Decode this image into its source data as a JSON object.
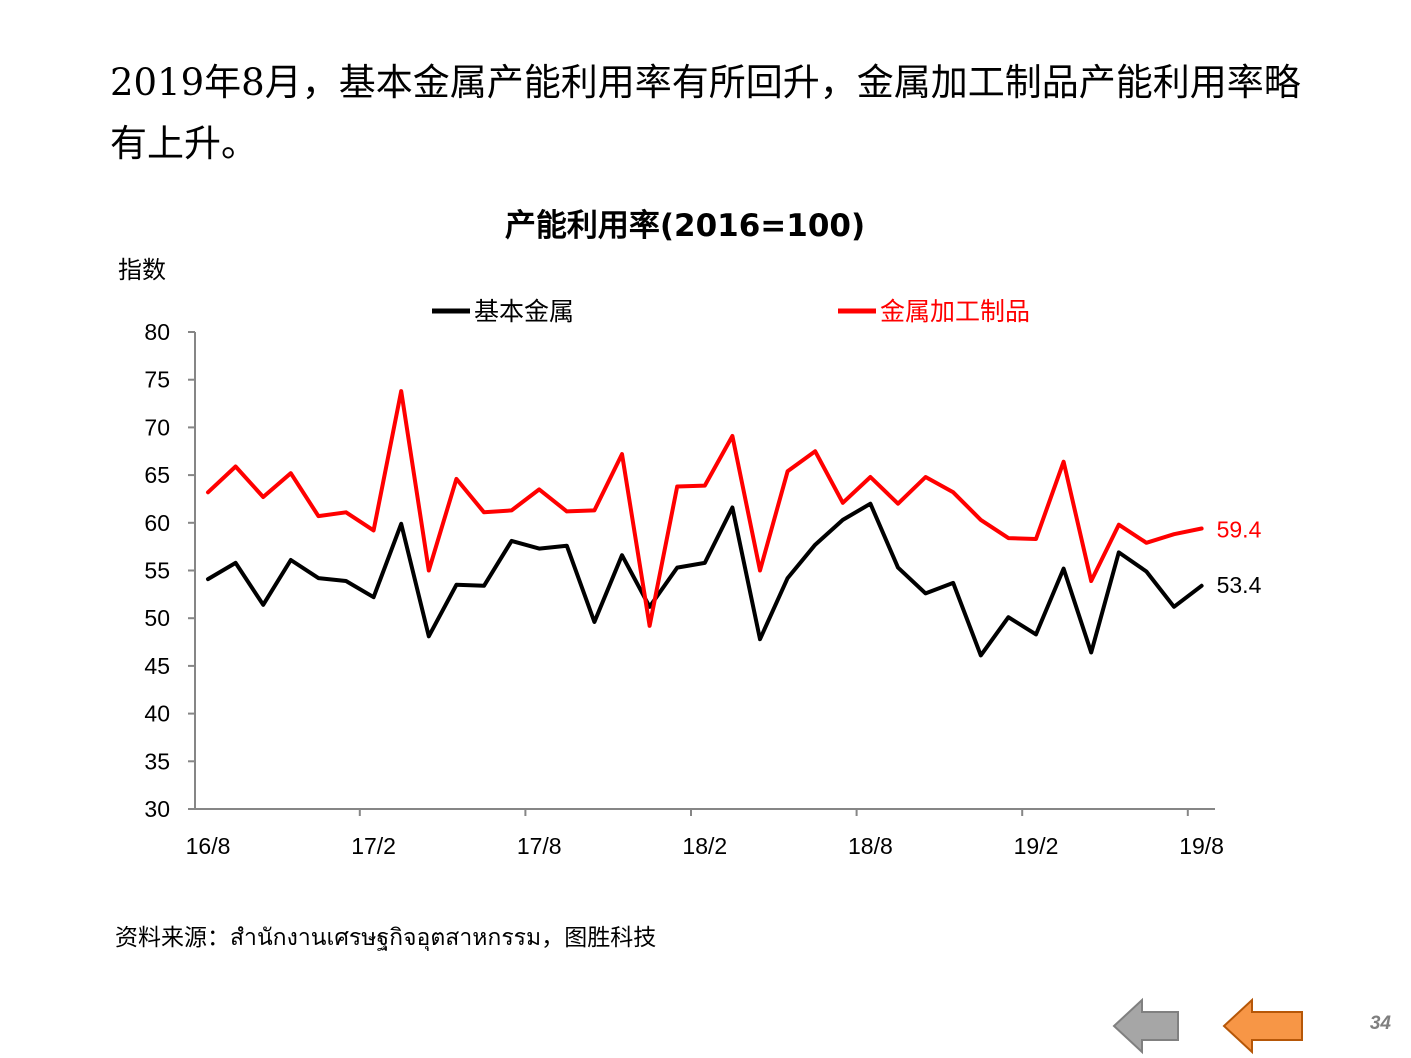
{
  "headline": "2019年8月，基本金属产能利用率有所回升，金属加工制品产能利用率略有上升。",
  "source": "资料来源：สำนักงานเศรษฐกิจอุตสาหกรรม，图胜科技",
  "page_number": "34",
  "nav": {
    "back_icon": "grey-left-arrow-icon",
    "prev_icon": "orange-left-arrow-icon"
  },
  "chart_data": {
    "type": "line",
    "title": "产能利用率(2016=100)",
    "ylabel": "指数",
    "ylim": [
      30,
      80
    ],
    "y_ticks": [
      "80",
      "75",
      "70",
      "65",
      "60",
      "55",
      "50",
      "45",
      "40",
      "35",
      "30"
    ],
    "x": [
      "16/8",
      "16/9",
      "16/10",
      "16/11",
      "16/12",
      "17/1",
      "17/2",
      "17/3",
      "17/4",
      "17/5",
      "17/6",
      "17/7",
      "17/8",
      "17/9",
      "17/10",
      "17/11",
      "17/12",
      "18/1",
      "18/2",
      "18/3",
      "18/4",
      "18/5",
      "18/6",
      "18/7",
      "18/8",
      "18/9",
      "18/10",
      "18/11",
      "18/12",
      "19/1",
      "19/2",
      "19/3",
      "19/4",
      "19/5",
      "19/6",
      "19/7",
      "19/8"
    ],
    "x_tick_labels": [
      "16/8",
      "17/2",
      "17/8",
      "18/2",
      "18/8",
      "19/2",
      "19/8"
    ],
    "grid": false,
    "legend_position": "top",
    "series": [
      {
        "name": "基本金属",
        "color": "#000000",
        "values": [
          54.1,
          55.8,
          51.4,
          56.1,
          54.2,
          53.9,
          52.2,
          59.9,
          48.1,
          53.5,
          53.4,
          58.1,
          57.3,
          57.6,
          49.6,
          56.6,
          51.2,
          55.3,
          55.8,
          61.6,
          47.8,
          54.2,
          57.7,
          60.3,
          62.0,
          55.3,
          52.6,
          53.7,
          46.1,
          50.1,
          48.3,
          55.2,
          46.4,
          56.9,
          54.9,
          51.2,
          53.4
        ],
        "end_label": "53.4",
        "end_label_color": "#000000"
      },
      {
        "name": "金属加工制品",
        "color": "#ff0000",
        "values": [
          63.2,
          65.9,
          62.7,
          65.2,
          60.7,
          61.1,
          59.2,
          73.8,
          55.0,
          64.6,
          61.1,
          61.3,
          63.5,
          61.2,
          61.3,
          67.2,
          49.2,
          63.8,
          63.9,
          69.1,
          55.0,
          65.4,
          67.5,
          62.1,
          64.8,
          62.0,
          64.8,
          63.2,
          60.3,
          58.4,
          58.3,
          66.4,
          53.9,
          59.8,
          57.9,
          58.8,
          59.4
        ],
        "end_label": "59.4",
        "end_label_color": "#ff0000"
      }
    ]
  }
}
